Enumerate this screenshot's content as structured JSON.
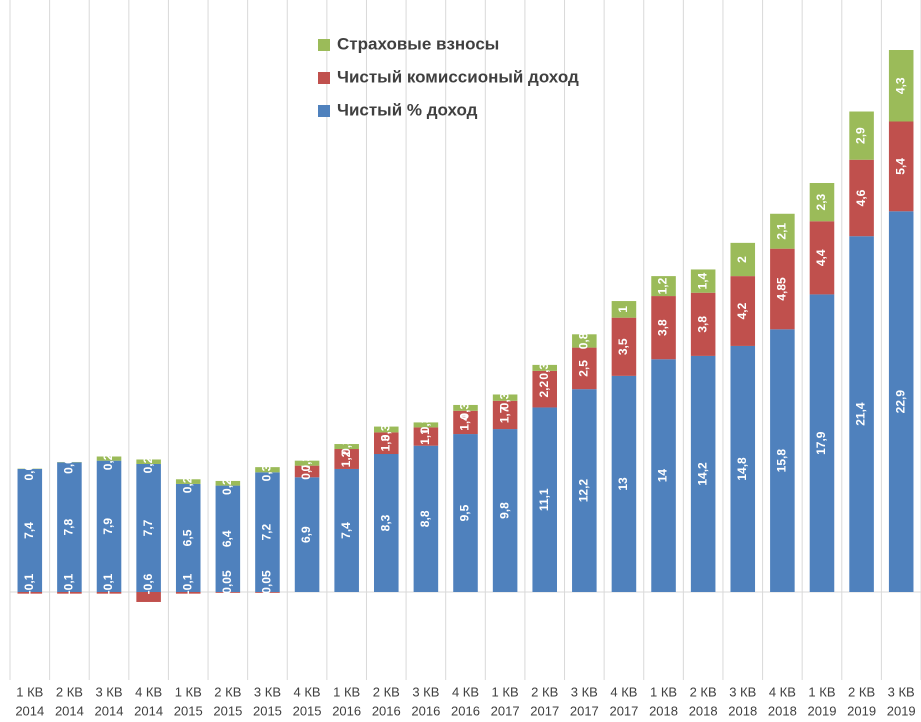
{
  "chart_data": {
    "type": "stacked_bar",
    "categories": [
      [
        "1 КВ",
        "2014"
      ],
      [
        "2 КВ",
        "2014"
      ],
      [
        "3 КВ",
        "2014"
      ],
      [
        "4 КВ",
        "2014"
      ],
      [
        "1 КВ",
        "2015"
      ],
      [
        "2 КВ",
        "2015"
      ],
      [
        "3 КВ",
        "2015"
      ],
      [
        "4 КВ",
        "2015"
      ],
      [
        "1 КВ",
        "2016"
      ],
      [
        "2 КВ",
        "2016"
      ],
      [
        "3 КВ",
        "2016"
      ],
      [
        "4 КВ",
        "2016"
      ],
      [
        "1 КВ",
        "2017"
      ],
      [
        "2 КВ",
        "2017"
      ],
      [
        "3 КВ",
        "2017"
      ],
      [
        "4 КВ",
        "2017"
      ],
      [
        "1 КВ",
        "2018"
      ],
      [
        "2 КВ",
        "2018"
      ],
      [
        "3 КВ",
        "2018"
      ],
      [
        "4 КВ",
        "2018"
      ],
      [
        "1 КВ",
        "2019"
      ],
      [
        "2 КВ",
        "2019"
      ],
      [
        "3 КВ",
        "2019"
      ]
    ],
    "series": [
      {
        "name": "Чистый % доход",
        "color": "#4f81bd",
        "values": [
          7.4,
          7.8,
          7.9,
          7.7,
          6.5,
          6.4,
          7.2,
          6.9,
          7.4,
          8.3,
          8.8,
          9.5,
          9.8,
          11.1,
          12.2,
          13,
          14,
          14.2,
          14.8,
          15.8,
          17.9,
          21.4,
          22.9
        ],
        "value_labels": [
          "7,4",
          "7,8",
          "7,9",
          "7,7",
          "6,5",
          "6,4",
          "7,2",
          "6,9",
          "7,4",
          "8,3",
          "8,8",
          "9,5",
          "9,8",
          "11,1",
          "12,2",
          "13",
          "14",
          "14,2",
          "14,8",
          "15,8",
          "17,9",
          "21,4",
          "22,9"
        ]
      },
      {
        "name": "Чистый комиссионый доход",
        "color": "#c0504d",
        "values": [
          -0.1,
          -0.1,
          -0.1,
          -0.6,
          -0.1,
          -0.05,
          -0.05,
          0.7,
          1.2,
          1.3,
          1.1,
          1.4,
          1.7,
          2.2,
          2.5,
          3.5,
          3.8,
          3.8,
          4.2,
          4.85,
          4.4,
          4.6,
          5.4
        ],
        "value_labels": [
          "-0,1",
          "-0,1",
          "-0,1",
          "-0,6",
          "-0,1",
          "-0,05",
          "-0,05",
          "0,7",
          "1,2",
          "1,3",
          "1,1",
          "1,4",
          "1,7",
          "2,2",
          "2,5",
          "3,5",
          "3,8",
          "3,8",
          "4,2",
          "4,85",
          "4,4",
          "4,6",
          "5,4"
        ]
      },
      {
        "name": "Страховые взносы",
        "color": "#9bbb59",
        "values": [
          0.02,
          0.02,
          0.25,
          0.27,
          0.28,
          0.28,
          0.31,
          0.3,
          0.3,
          0.35,
          0.3,
          0.35,
          0.38,
          0.36,
          0.8,
          1,
          1.2,
          1.4,
          2,
          2.1,
          2.3,
          2.9,
          4.3
        ],
        "value_labels": [
          "0,02",
          "0,02",
          "0,25",
          "0,27",
          "0,28",
          "0,28",
          "0,31",
          "0,3",
          "0,3",
          "0,35",
          "0,3",
          "0,35",
          "0,38",
          "0,36",
          "0,8",
          "1",
          "1,2",
          "1,4",
          "2",
          "2,1",
          "2,3",
          "2,9",
          "4,3"
        ]
      }
    ],
    "legend": "top-center"
  }
}
